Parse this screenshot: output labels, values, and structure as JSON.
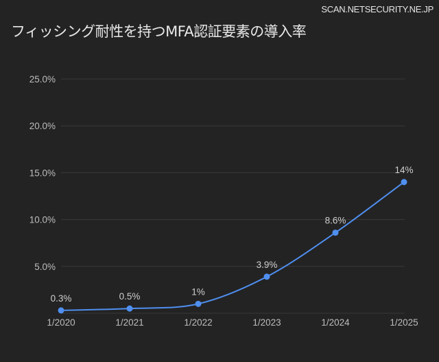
{
  "header": {
    "source": "SCAN.NETSECURITY.NE.JP",
    "title": "フィッシング耐性を持つMFA認証要素の導入率"
  },
  "colors": {
    "background": "#232323",
    "grid": "#3a3a3a",
    "line": "#4f8ff0",
    "text": "#bdbdbd"
  },
  "chart_data": {
    "type": "line",
    "title": "フィッシング耐性を持つMFA認証要素の導入率",
    "xlabel": "",
    "ylabel": "",
    "categories": [
      "1/2020",
      "1/2021",
      "1/2022",
      "1/2023",
      "1/2024",
      "1/2025"
    ],
    "series": [
      {
        "name": "導入率",
        "values": [
          0.3,
          0.5,
          1.0,
          3.9,
          8.6,
          14.0
        ],
        "labels": [
          "0.3%",
          "0.5%",
          "1%",
          "3.9%",
          "8.6%",
          "14%"
        ]
      }
    ],
    "ylim": [
      0,
      25
    ],
    "yticks": [
      5,
      10,
      15,
      20,
      25
    ],
    "ytick_labels": [
      "5.0%",
      "10.0%",
      "15.0%",
      "20.0%",
      "25.0%"
    ],
    "grid": true,
    "legend": "none",
    "smooth": true
  }
}
